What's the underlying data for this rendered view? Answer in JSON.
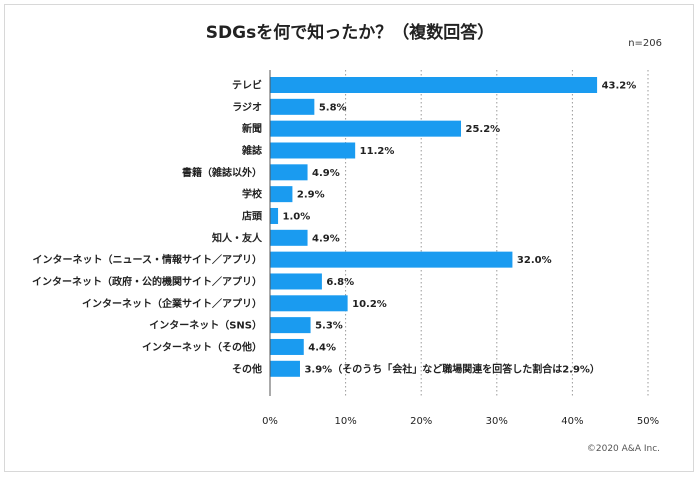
{
  "title": "SDGsを何で知ったか？（複数回答）",
  "sample_size": "n=206",
  "copyright": "©2020 A&A Inc.",
  "colors": {
    "bar": "#1a9bf0",
    "grid": "#9a9a9a"
  },
  "chart_data": {
    "type": "bar",
    "orientation": "horizontal",
    "categories": [
      "テレビ",
      "ラジオ",
      "新聞",
      "雑誌",
      "書籍（雑誌以外）",
      "学校",
      "店頭",
      "知人・友人",
      "インターネット（ニュース・情報サイト／アプリ）",
      "インターネット（政府・公的機関サイト／アプリ）",
      "インターネット（企業サイト／アプリ）",
      "インターネット（SNS）",
      "インターネット（その他）",
      "その他"
    ],
    "values": [
      43.2,
      5.8,
      25.2,
      11.2,
      4.9,
      2.9,
      1.0,
      4.9,
      32.0,
      6.8,
      10.2,
      5.3,
      4.4,
      3.9
    ],
    "value_labels": [
      "43.2%",
      "5.8%",
      "25.2%",
      "11.2%",
      "4.9%",
      "2.9%",
      "1.0%",
      "4.9%",
      "32.0%",
      "6.8%",
      "10.2%",
      "5.3%",
      "4.4%",
      "3.9%（そのうち「会社」など職場関連を回答した割合は2.9%）"
    ],
    "xlim": [
      0,
      50
    ],
    "x_ticks": [
      "0%",
      "10%",
      "20%",
      "30%",
      "40%",
      "50%"
    ],
    "grid": "vertical dotted"
  }
}
